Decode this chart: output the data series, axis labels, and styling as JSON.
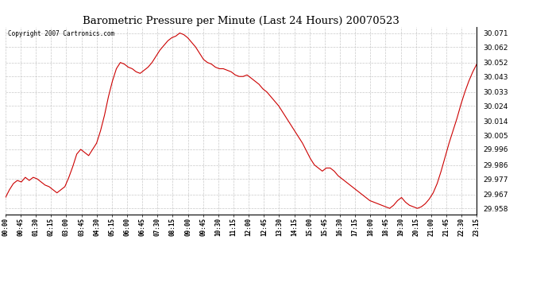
{
  "title": "Barometric Pressure per Minute (Last 24 Hours) 20070523",
  "copyright_text": "Copyright 2007 Cartronics.com",
  "line_color": "#cc0000",
  "background_color": "#ffffff",
  "plot_bg_color": "#ffffff",
  "grid_color": "#bbbbbb",
  "yticks": [
    29.958,
    29.967,
    29.977,
    29.986,
    29.996,
    30.005,
    30.014,
    30.024,
    30.033,
    30.043,
    30.052,
    30.062,
    30.071
  ],
  "ylim": [
    29.954,
    30.075
  ],
  "xtick_labels": [
    "00:00",
    "00:45",
    "01:30",
    "02:15",
    "03:00",
    "03:45",
    "04:30",
    "05:15",
    "06:00",
    "06:45",
    "07:30",
    "08:15",
    "09:00",
    "09:45",
    "10:30",
    "11:15",
    "12:00",
    "12:45",
    "13:30",
    "14:15",
    "15:00",
    "15:45",
    "16:30",
    "17:15",
    "18:00",
    "18:45",
    "19:30",
    "20:15",
    "21:00",
    "21:45",
    "22:30",
    "23:15"
  ],
  "pressure_values": [
    29.965,
    29.97,
    29.974,
    29.976,
    29.975,
    29.978,
    29.976,
    29.978,
    29.977,
    29.975,
    29.973,
    29.972,
    29.97,
    29.968,
    29.97,
    29.972,
    29.978,
    29.985,
    29.993,
    29.996,
    29.994,
    29.992,
    29.996,
    30.0,
    30.008,
    30.018,
    30.03,
    30.04,
    30.048,
    30.052,
    30.051,
    30.049,
    30.048,
    30.046,
    30.045,
    30.047,
    30.049,
    30.052,
    30.056,
    30.06,
    30.063,
    30.066,
    30.068,
    30.069,
    30.071,
    30.07,
    30.068,
    30.065,
    30.062,
    30.058,
    30.054,
    30.052,
    30.051,
    30.049,
    30.048,
    30.048,
    30.047,
    30.046,
    30.044,
    30.043,
    30.043,
    30.044,
    30.042,
    30.04,
    30.038,
    30.035,
    30.033,
    30.03,
    30.027,
    30.024,
    30.02,
    30.016,
    30.012,
    30.008,
    30.004,
    30.0,
    29.995,
    29.99,
    29.986,
    29.984,
    29.982,
    29.984,
    29.984,
    29.982,
    29.979,
    29.977,
    29.975,
    29.973,
    29.971,
    29.969,
    29.967,
    29.965,
    29.963,
    29.962,
    29.961,
    29.96,
    29.959,
    29.958,
    29.96,
    29.963,
    29.965,
    29.962,
    29.96,
    29.959,
    29.958,
    29.959,
    29.961,
    29.964,
    29.968,
    29.974,
    29.982,
    29.991,
    30.0,
    30.008,
    30.016,
    30.025,
    30.033,
    30.04,
    30.046,
    30.051
  ]
}
